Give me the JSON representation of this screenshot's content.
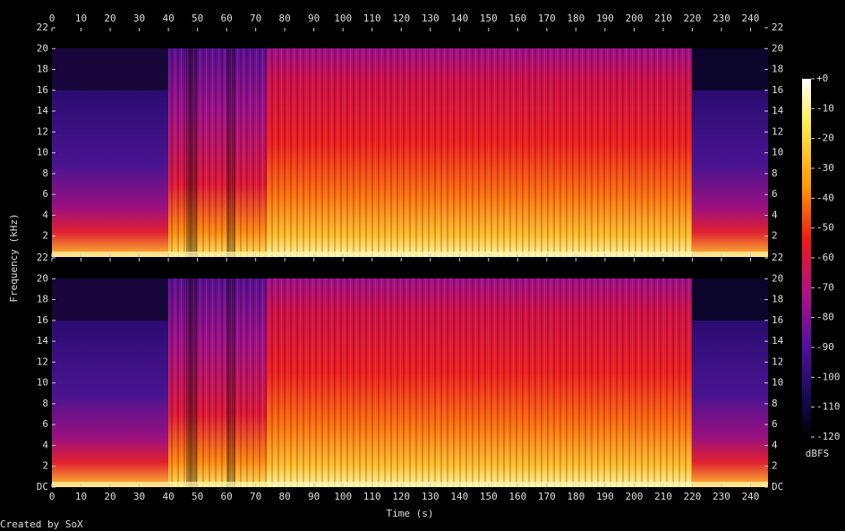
{
  "chart_data": {
    "type": "spectrogram",
    "xlabel": "Time (s)",
    "ylabel": "Frequency (kHz)",
    "footer": "Created by SoX",
    "xlim": [
      0,
      246
    ],
    "xticks": [
      0,
      10,
      20,
      30,
      40,
      50,
      60,
      70,
      80,
      90,
      100,
      110,
      120,
      130,
      140,
      150,
      160,
      170,
      180,
      190,
      200,
      210,
      220,
      230,
      240
    ],
    "channels": [
      {
        "ylim": [
          0,
          22
        ],
        "yticks": [
          2,
          4,
          6,
          8,
          10,
          12,
          14,
          16,
          18,
          20,
          22
        ]
      },
      {
        "ylim": [
          0,
          22
        ],
        "yticks": [
          {
            "value": 0,
            "label": "DC"
          },
          2,
          4,
          6,
          8,
          10,
          12,
          14,
          16,
          18,
          20,
          22
        ]
      }
    ],
    "colorbar": {
      "label": "dBFS",
      "lim": [
        -120,
        0
      ],
      "ticks": [
        {
          "value": 0,
          "label": "+0"
        },
        -10,
        -20,
        -30,
        -40,
        -50,
        -60,
        -70,
        -80,
        -90,
        -100,
        -110,
        -120
      ]
    }
  }
}
